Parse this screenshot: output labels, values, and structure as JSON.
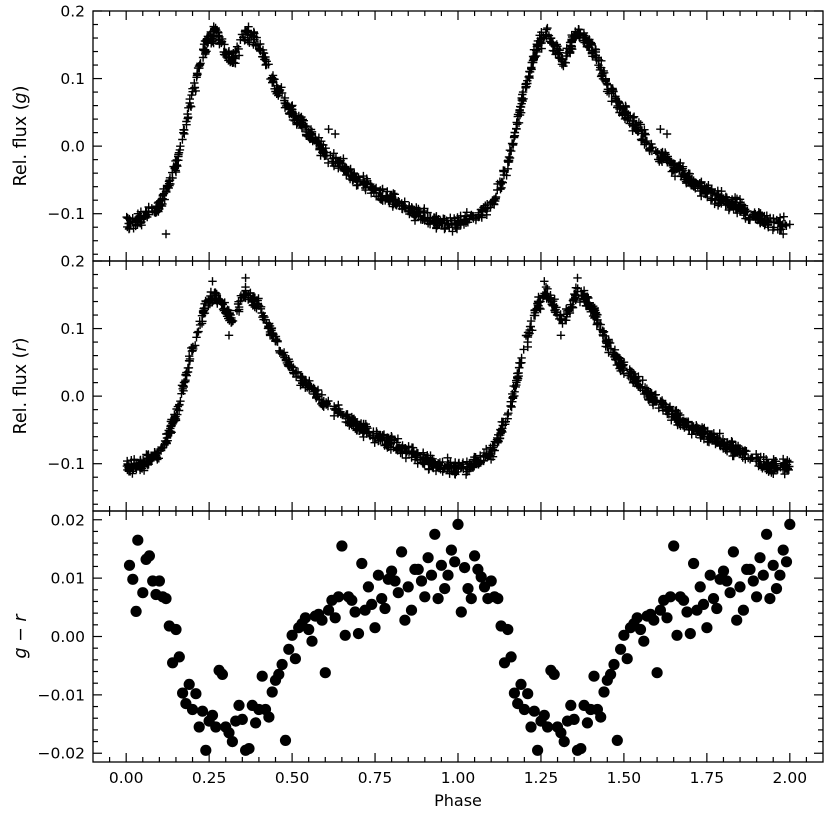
{
  "figure": {
    "xlabel": "Phase"
  },
  "chart_data": [
    {
      "type": "scatter",
      "marker": "plus",
      "ylabel": "Rel. flux (g)",
      "ylabel_parts": [
        "Rel. flux (",
        "g",
        ")"
      ],
      "xlim": [
        -0.1,
        2.1
      ],
      "ylim": [
        -0.17,
        0.2
      ],
      "xticks": [
        0.0,
        0.25,
        0.5,
        0.75,
        1.0,
        1.25,
        1.5,
        1.75,
        2.0
      ],
      "xticklabels": [
        "0.00",
        "0.25",
        "0.50",
        "0.75",
        "1.00",
        "1.25",
        "1.50",
        "1.75",
        "2.00"
      ],
      "show_xticklabels": false,
      "yticks": [
        -0.1,
        0.0,
        0.1,
        0.2
      ],
      "yticklabels": [
        "−0.1",
        "0.0",
        "0.1",
        "0.2"
      ],
      "curve": {
        "x": [
          0.0,
          0.05,
          0.1,
          0.15,
          0.2,
          0.24,
          0.27,
          0.3,
          0.32,
          0.36,
          0.4,
          0.45,
          0.5,
          0.55,
          0.6,
          0.7,
          0.8,
          0.9,
          0.95,
          1.0
        ],
        "y": [
          -0.115,
          -0.105,
          -0.09,
          -0.03,
          0.08,
          0.15,
          0.17,
          0.14,
          0.125,
          0.17,
          0.15,
          0.09,
          0.05,
          0.02,
          -0.01,
          -0.05,
          -0.08,
          -0.105,
          -0.115,
          -0.115
        ],
        "scatter": 0.011,
        "points_per_cycle": 620
      },
      "outliers": [
        {
          "x": 0.61,
          "y": 0.025
        },
        {
          "x": 0.63,
          "y": 0.018
        },
        {
          "x": 0.12,
          "y": -0.13
        },
        {
          "x": 1.61,
          "y": 0.025
        },
        {
          "x": 1.63,
          "y": 0.018
        },
        {
          "x": 1.98,
          "y": -0.13
        }
      ]
    },
    {
      "type": "scatter",
      "marker": "plus",
      "ylabel": "Rel. flux (r)",
      "ylabel_parts": [
        "Rel. flux (",
        "r",
        ")"
      ],
      "xlim": [
        -0.1,
        2.1
      ],
      "ylim": [
        -0.17,
        0.2
      ],
      "xticks": [
        0.0,
        0.25,
        0.5,
        0.75,
        1.0,
        1.25,
        1.5,
        1.75,
        2.0
      ],
      "xticklabels": [
        "0.00",
        "0.25",
        "0.50",
        "0.75",
        "1.00",
        "1.25",
        "1.50",
        "1.75",
        "2.00"
      ],
      "show_xticklabels": false,
      "yticks": [
        -0.1,
        0.0,
        0.1,
        0.2
      ],
      "yticklabels": [
        "−0.1",
        "0.0",
        "0.1",
        "0.2"
      ],
      "curve": {
        "x": [
          0.0,
          0.05,
          0.1,
          0.15,
          0.2,
          0.24,
          0.27,
          0.3,
          0.32,
          0.36,
          0.4,
          0.45,
          0.5,
          0.55,
          0.6,
          0.7,
          0.8,
          0.9,
          0.95,
          1.0
        ],
        "y": [
          -0.105,
          -0.1,
          -0.085,
          -0.03,
          0.07,
          0.135,
          0.15,
          0.125,
          0.11,
          0.155,
          0.135,
          0.08,
          0.04,
          0.015,
          -0.01,
          -0.045,
          -0.07,
          -0.095,
          -0.105,
          -0.105
        ],
        "scatter": 0.01,
        "points_per_cycle": 620
      },
      "outliers": [
        {
          "x": 0.26,
          "y": 0.17
        },
        {
          "x": 0.36,
          "y": 0.175
        },
        {
          "x": 1.26,
          "y": 0.17
        },
        {
          "x": 1.36,
          "y": 0.175
        },
        {
          "x": 0.31,
          "y": 0.09
        },
        {
          "x": 1.31,
          "y": 0.09
        }
      ]
    },
    {
      "type": "scatter",
      "marker": "circle",
      "ylabel": "g − r",
      "ylabel_parts": [
        "g",
        " − ",
        "r"
      ],
      "xlabel": "Phase",
      "xlim": [
        -0.1,
        2.1
      ],
      "ylim": [
        -0.0215,
        0.0215
      ],
      "xticks": [
        0.0,
        0.25,
        0.5,
        0.75,
        1.0,
        1.25,
        1.5,
        1.75,
        2.0
      ],
      "xticklabels": [
        "0.00",
        "0.25",
        "0.50",
        "0.75",
        "1.00",
        "1.25",
        "1.50",
        "1.75",
        "2.00"
      ],
      "show_xticklabels": true,
      "yticks": [
        -0.02,
        -0.01,
        0.0,
        0.01,
        0.02
      ],
      "yticklabels": [
        "−0.02",
        "−0.01",
        "0.00",
        "0.01",
        "0.02"
      ],
      "x": [
        0.01,
        0.02,
        0.03,
        0.035,
        0.05,
        0.06,
        0.07,
        0.08,
        0.09,
        0.1,
        0.11,
        0.12,
        0.13,
        0.14,
        0.15,
        0.16,
        0.17,
        0.18,
        0.19,
        0.2,
        0.21,
        0.22,
        0.23,
        0.24,
        0.25,
        0.26,
        0.27,
        0.28,
        0.29,
        0.3,
        0.31,
        0.32,
        0.33,
        0.34,
        0.35,
        0.36,
        0.37,
        0.38,
        0.39,
        0.4,
        0.41,
        0.42,
        0.43,
        0.44,
        0.45,
        0.46,
        0.47,
        0.48,
        0.49,
        0.5,
        0.51,
        0.52,
        0.53,
        0.54,
        0.55,
        0.56,
        0.57,
        0.58,
        0.59,
        0.6,
        0.61,
        0.62,
        0.63,
        0.64,
        0.65,
        0.66,
        0.67,
        0.68,
        0.69,
        0.7,
        0.71,
        0.72,
        0.73,
        0.74,
        0.75,
        0.76,
        0.77,
        0.78,
        0.79,
        0.8,
        0.81,
        0.82,
        0.83,
        0.84,
        0.85,
        0.86,
        0.87,
        0.88,
        0.89,
        0.9,
        0.91,
        0.92,
        0.93,
        0.94,
        0.95,
        0.96,
        0.97,
        0.98,
        0.99,
        1.0,
        1.01,
        1.02,
        1.03,
        1.04,
        1.05,
        1.06,
        1.07,
        1.08,
        1.09,
        1.1,
        1.11,
        1.12,
        1.13,
        1.14,
        1.15,
        1.16,
        1.17,
        1.18,
        1.19,
        1.2,
        1.21,
        1.22,
        1.23,
        1.24,
        1.25,
        1.26,
        1.27,
        1.28,
        1.29,
        1.3,
        1.31,
        1.32,
        1.33,
        1.34,
        1.35,
        1.36,
        1.37,
        1.38,
        1.39,
        1.4,
        1.41,
        1.42,
        1.43,
        1.44,
        1.45,
        1.46,
        1.47,
        1.48,
        1.49,
        1.5,
        1.51,
        1.52,
        1.53,
        1.54,
        1.55,
        1.56,
        1.57,
        1.58,
        1.59,
        1.6,
        1.61,
        1.62,
        1.63,
        1.64,
        1.65,
        1.66,
        1.67,
        1.68,
        1.69,
        1.7,
        1.71,
        1.72,
        1.73,
        1.74,
        1.75,
        1.76,
        1.77,
        1.78,
        1.79,
        1.8,
        1.81,
        1.82,
        1.83,
        1.84,
        1.85,
        1.86,
        1.87,
        1.88,
        1.89,
        1.9,
        1.91,
        1.92,
        1.93,
        1.94,
        1.95,
        1.96,
        1.97,
        1.98,
        1.99,
        2.0
      ],
      "y": [
        0.0122,
        0.0098,
        0.0043,
        0.0165,
        0.0075,
        0.0132,
        0.0138,
        0.0095,
        0.0072,
        0.0095,
        0.0068,
        0.0065,
        0.0018,
        -0.0045,
        0.0012,
        -0.0035,
        -0.0097,
        -0.0115,
        -0.0082,
        -0.0125,
        -0.0098,
        -0.0155,
        -0.0128,
        -0.0195,
        -0.0145,
        -0.0135,
        -0.0155,
        -0.0058,
        -0.0065,
        -0.0155,
        -0.0165,
        -0.018,
        -0.0145,
        -0.0118,
        -0.0142,
        -0.0195,
        -0.0192,
        -0.0118,
        -0.0148,
        -0.0125,
        -0.0068,
        -0.0125,
        -0.0138,
        -0.0095,
        -0.0075,
        -0.0065,
        -0.0048,
        -0.0178,
        -0.0022,
        0.0002,
        -0.0038,
        0.0015,
        0.0022,
        0.0032,
        0.0012,
        -0.0008,
        0.0035,
        0.0038,
        0.0028,
        -0.0062,
        0.0045,
        0.0062,
        0.0032,
        0.0068,
        0.0155,
        0.0002,
        0.0068,
        0.0062,
        0.0042,
        0.0005,
        0.0125,
        0.0045,
        0.0085,
        0.0055,
        0.0015,
        0.0105,
        0.0065,
        0.0048,
        0.0098,
        0.0112,
        0.0095,
        0.0075,
        0.0145,
        0.0028,
        0.0085,
        0.0045,
        0.0115,
        0.0115,
        0.0095,
        0.0068,
        0.0135,
        0.0105,
        0.0175,
        0.0065,
        0.0122,
        0.0082,
        0.0105,
        0.0148,
        0.0128,
        0.0192,
        0.0042,
        0.0118,
        0.0082,
        0.0065,
        0.0138,
        0.0115,
        0.0102,
        0.0085,
        0.0065,
        0.0095,
        0.0068,
        0.0065,
        0.0018,
        -0.0045,
        0.0012,
        -0.0035,
        -0.0097,
        -0.0115,
        -0.0082,
        -0.0125,
        -0.0098,
        -0.0155,
        -0.0128,
        -0.0195,
        -0.0145,
        -0.0135,
        -0.0155,
        -0.0058,
        -0.0065,
        -0.0155,
        -0.0165,
        -0.018,
        -0.0145,
        -0.0118,
        -0.0142,
        -0.0195,
        -0.0192,
        -0.0118,
        -0.0148,
        -0.0125,
        -0.0068,
        -0.0125,
        -0.0138,
        -0.0095,
        -0.0075,
        -0.0065,
        -0.0048,
        -0.0178,
        -0.0022,
        0.0002,
        -0.0038,
        0.0015,
        0.0022,
        0.0032,
        0.0012,
        -0.0008,
        0.0035,
        0.0038,
        0.0028,
        -0.0062,
        0.0045,
        0.0062,
        0.0032,
        0.0068,
        0.0155,
        0.0002,
        0.0068,
        0.0062,
        0.0042,
        0.0005,
        0.0125,
        0.0045,
        0.0085,
        0.0055,
        0.0015,
        0.0105,
        0.0065,
        0.0048,
        0.0098,
        0.0112,
        0.0095,
        0.0075,
        0.0145,
        0.0028,
        0.0085,
        0.0045,
        0.0115,
        0.0115,
        0.0095,
        0.0068,
        0.0135,
        0.0105,
        0.0175,
        0.0065,
        0.0122,
        0.0082,
        0.0105,
        0.0148,
        0.0128,
        0.0192
      ]
    }
  ]
}
